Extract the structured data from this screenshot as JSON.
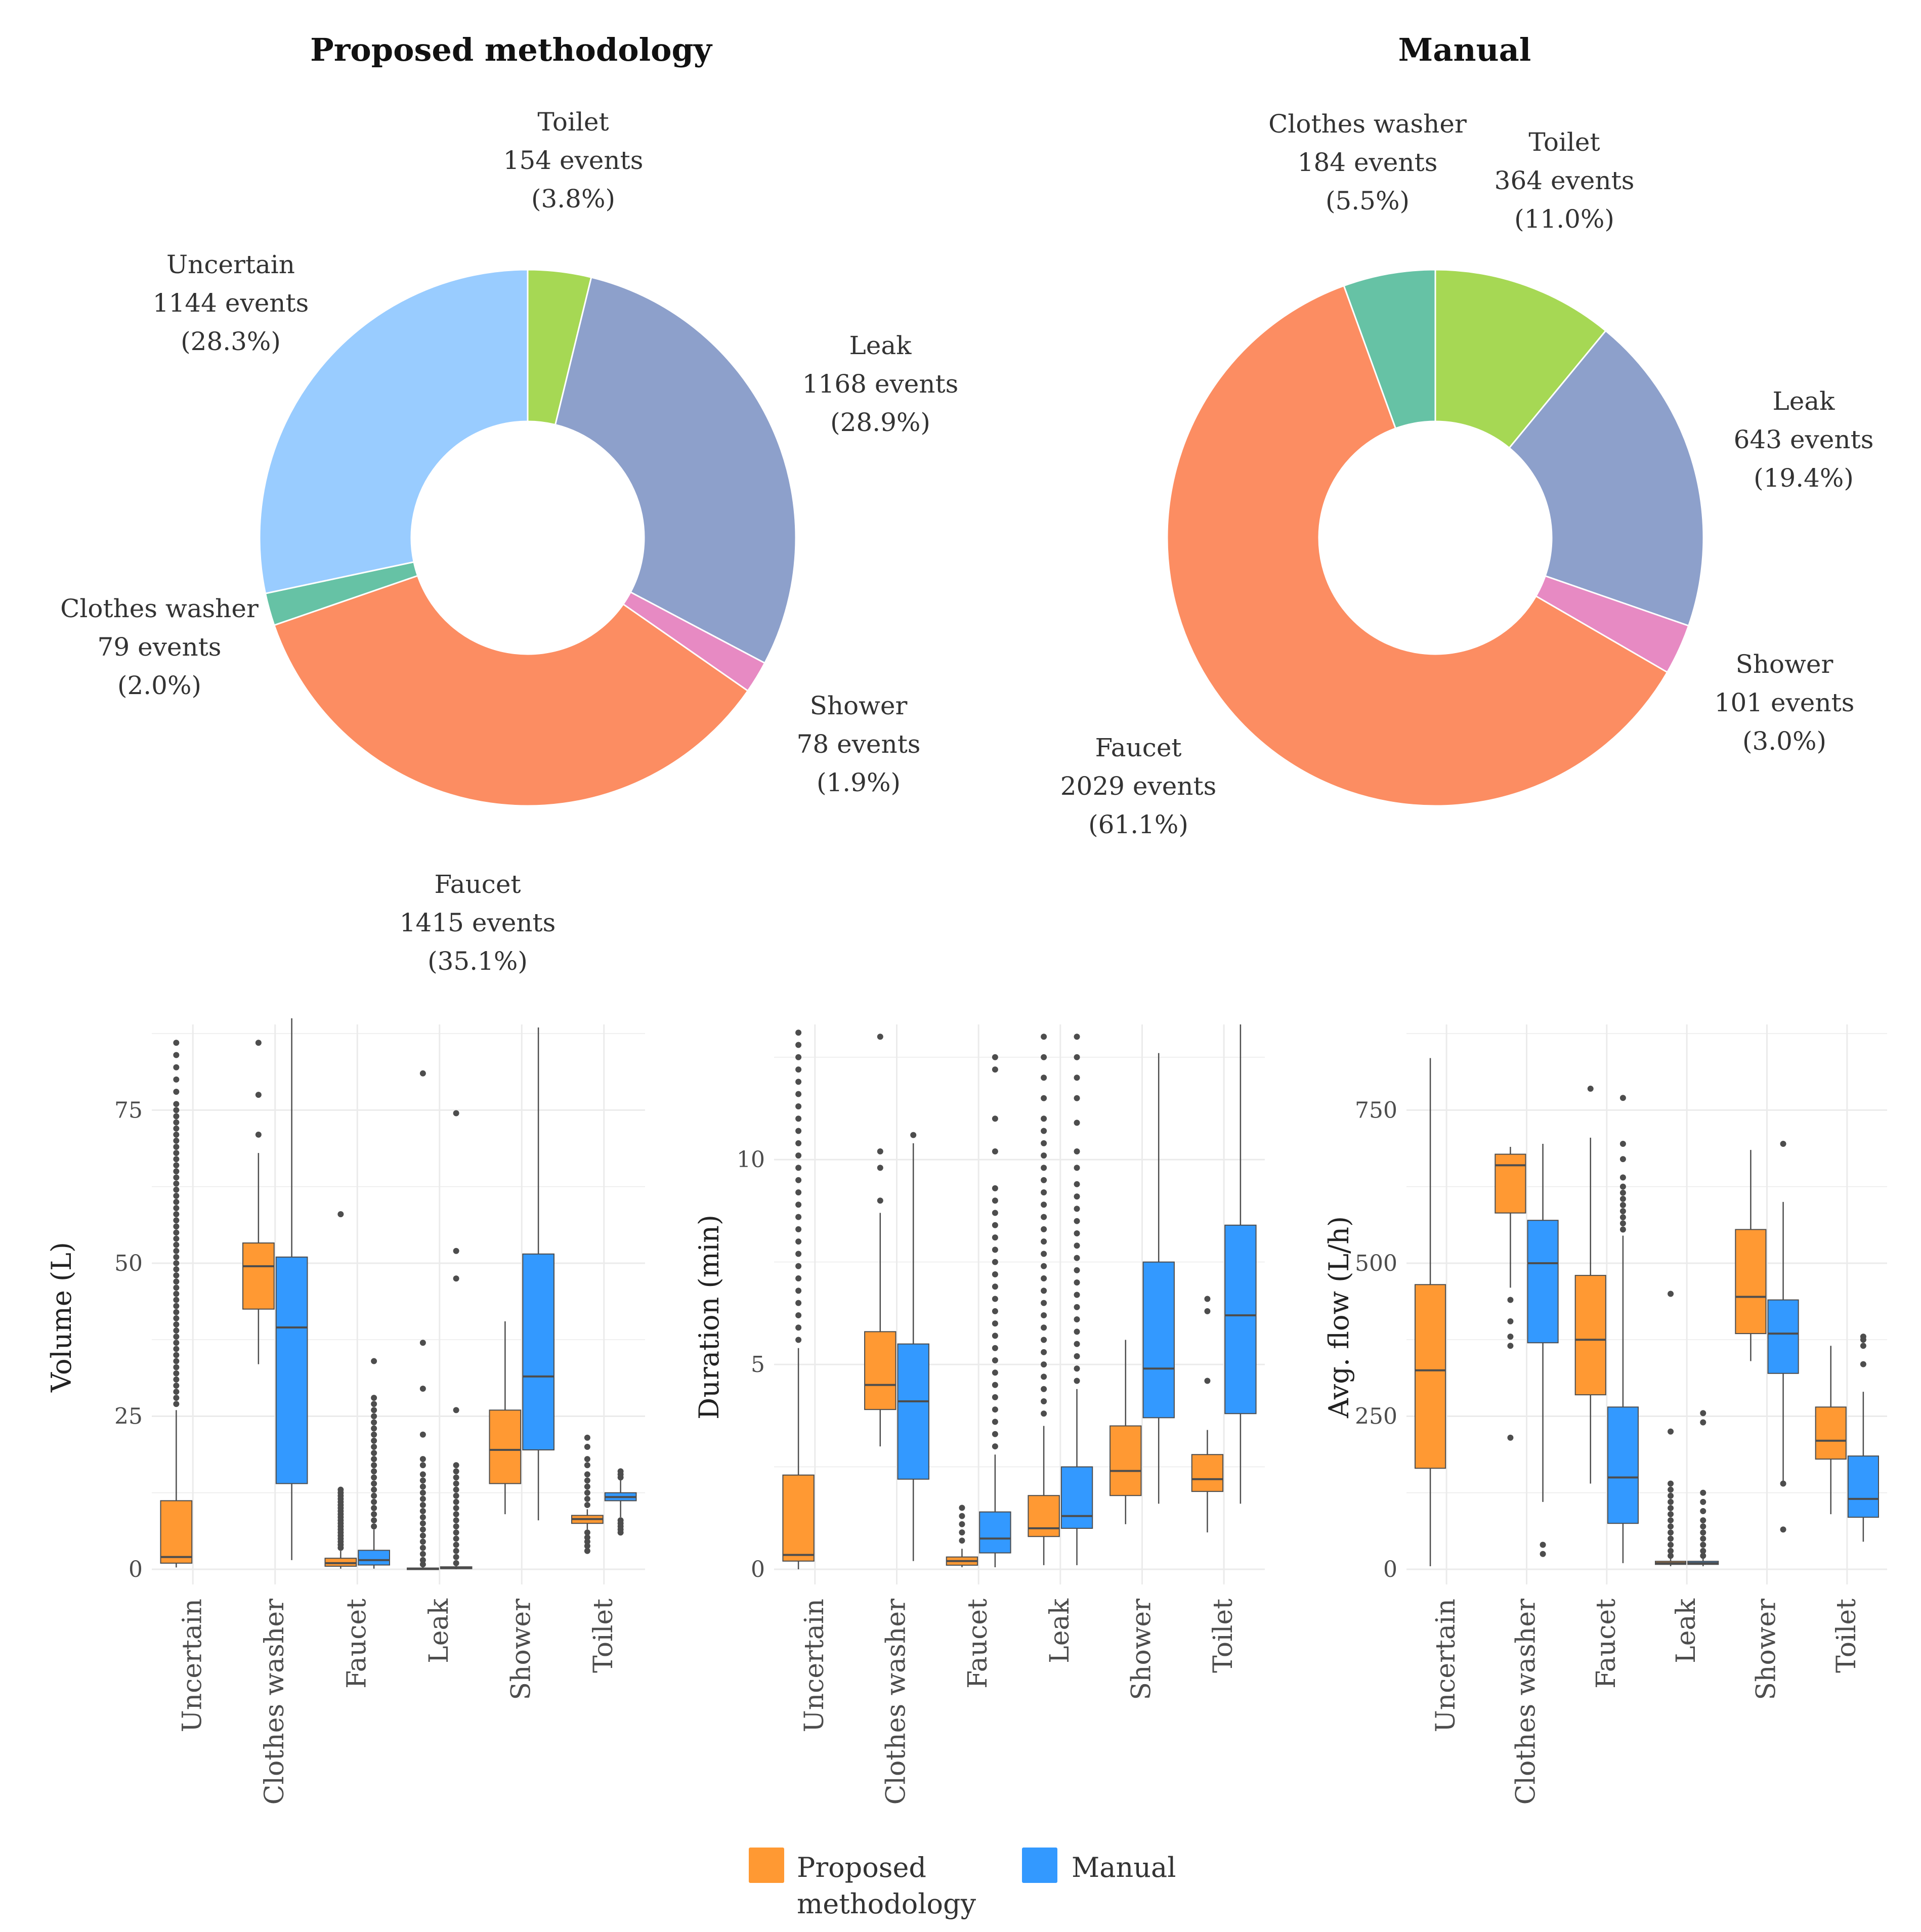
{
  "colors": {
    "Toilet": "#a6d854",
    "Leak": "#8da0cb",
    "Shower": "#e78ac3",
    "Faucet": "#fc8d62",
    "Clothes washer": "#66c2a5",
    "Uncertain": "#99ccff",
    "proposed": "#ff9933",
    "manual": "#3399ff",
    "grid": "#ebebeb",
    "whisker": "#4d4d4d"
  },
  "legend": {
    "proposed_line1": "Proposed",
    "proposed_line2": "methodology",
    "manual": "Manual"
  },
  "chart_data": [
    {
      "type": "pie",
      "title": "Proposed methodology",
      "donut": true,
      "slices": [
        {
          "label": "Toilet",
          "events": "154 events",
          "pct": "(3.8%)",
          "value": 154
        },
        {
          "label": "Leak",
          "events": "1168 events",
          "pct": "(28.9%)",
          "value": 1168
        },
        {
          "label": "Shower",
          "events": "78 events",
          "pct": "(1.9%)",
          "value": 78
        },
        {
          "label": "Faucet",
          "events": "1415 events",
          "pct": "(35.1%)",
          "value": 1415
        },
        {
          "label": "Clothes washer",
          "events": "79 events",
          "pct": "(2.0%)",
          "value": 79
        },
        {
          "label": "Uncertain",
          "events": "1144 events",
          "pct": "(28.3%)",
          "value": 1144
        }
      ]
    },
    {
      "type": "pie",
      "title": "Manual",
      "donut": true,
      "slices": [
        {
          "label": "Toilet",
          "events": "364 events",
          "pct": "(11.0%)",
          "value": 364
        },
        {
          "label": "Leak",
          "events": "643 events",
          "pct": "(19.4%)",
          "value": 643
        },
        {
          "label": "Shower",
          "events": "101 events",
          "pct": "(3.0%)",
          "value": 101
        },
        {
          "label": "Faucet",
          "events": "2029 events",
          "pct": "(61.1%)",
          "value": 2029
        },
        {
          "label": "Clothes washer",
          "events": "184 events",
          "pct": "(5.5%)",
          "value": 184
        }
      ]
    },
    {
      "type": "box",
      "ylabel": "Volume (L)",
      "ylim": [
        0,
        89
      ],
      "yticks": [
        0,
        25,
        50,
        75
      ],
      "categories": [
        "Uncertain",
        "Clothes washer",
        "Faucet",
        "Leak",
        "Shower",
        "Toilet"
      ],
      "series": [
        {
          "name": "Proposed methodology",
          "boxes": [
            {
              "cat": "Uncertain",
              "wlo": 0.3,
              "q1": 1.0,
              "med": 2.0,
              "q3": 11.2,
              "whi": 26.0,
              "outliers": [
                27,
                28,
                29,
                30,
                31,
                32,
                33,
                34,
                35,
                36,
                37,
                38,
                39,
                40,
                41,
                42,
                43,
                44,
                45,
                46,
                47,
                48,
                49,
                50,
                51,
                52,
                53,
                54,
                55,
                56,
                57,
                58,
                59,
                60,
                61,
                62,
                63,
                64,
                65,
                66,
                67,
                68,
                69,
                70,
                71,
                72,
                73,
                74,
                75,
                76,
                78,
                80,
                82,
                84,
                86
              ]
            },
            {
              "cat": "Clothes washer",
              "wlo": 33.5,
              "q1": 42.5,
              "med": 49.5,
              "q3": 53.3,
              "whi": 68.0,
              "outliers": [
                71,
                77.5,
                86
              ]
            },
            {
              "cat": "Faucet",
              "wlo": 0.1,
              "q1": 0.5,
              "med": 1.0,
              "q3": 1.8,
              "whi": 3.0,
              "outliers": [
                3.5,
                4,
                4.5,
                5,
                5.5,
                6,
                6.5,
                7,
                7.5,
                8,
                8.5,
                9,
                9.5,
                10,
                10.5,
                11,
                11.5,
                12,
                12.5,
                13,
                58
              ]
            },
            {
              "cat": "Leak",
              "wlo": 0.0,
              "q1": 0.05,
              "med": 0.1,
              "q3": 0.2,
              "whi": 0.4,
              "outliers": [
                0.8,
                1.5,
                2.5,
                3.5,
                4.5,
                5.5,
                6.5,
                7.5,
                8.5,
                9.5,
                10.5,
                11.5,
                12.5,
                13.5,
                14.5,
                15.5,
                17,
                18,
                22,
                29.5,
                37,
                81
              ]
            },
            {
              "cat": "Shower",
              "wlo": 9.0,
              "q1": 14.0,
              "med": 19.5,
              "q3": 26.0,
              "whi": 40.5,
              "outliers": []
            },
            {
              "cat": "Toilet",
              "wlo": 6.5,
              "q1": 7.5,
              "med": 8.2,
              "q3": 8.8,
              "whi": 9.8,
              "outliers": [
                3,
                3.8,
                4.5,
                5.2,
                6,
                10.5,
                11.5,
                12.5,
                13.5,
                14.5,
                15.5,
                17,
                18,
                20,
                21.5
              ]
            }
          ]
        },
        {
          "name": "Manual",
          "boxes": [
            {
              "cat": "Uncertain",
              "none": true
            },
            {
              "cat": "Clothes washer",
              "wlo": 1.5,
              "q1": 14.0,
              "med": 39.5,
              "q3": 51.0,
              "whi": 90.0,
              "outliers": []
            },
            {
              "cat": "Faucet",
              "wlo": 0.1,
              "q1": 0.7,
              "med": 1.5,
              "q3": 3.1,
              "whi": 6.5,
              "outliers": [
                7,
                8,
                9,
                10,
                11,
                12,
                13,
                14,
                15,
                16,
                17,
                18,
                19,
                20,
                21,
                22,
                23,
                24,
                25,
                26,
                27,
                28,
                34
              ]
            },
            {
              "cat": "Leak",
              "wlo": 0.0,
              "q1": 0.1,
              "med": 0.2,
              "q3": 0.4,
              "whi": 0.8,
              "outliers": [
                1,
                2,
                3,
                4,
                5,
                6,
                7,
                8,
                9,
                10,
                11,
                12,
                13,
                14,
                15,
                16,
                17,
                26,
                47.5,
                52,
                74.5
              ]
            },
            {
              "cat": "Shower",
              "wlo": 8.0,
              "q1": 19.5,
              "med": 31.5,
              "q3": 51.5,
              "whi": 88.5,
              "outliers": []
            },
            {
              "cat": "Toilet",
              "wlo": 8.5,
              "q1": 11.2,
              "med": 11.8,
              "q3": 12.5,
              "whi": 14.5,
              "outliers": [
                6,
                6.5,
                7,
                7.5,
                8,
                15,
                15.5,
                16
              ]
            }
          ]
        }
      ]
    },
    {
      "type": "box",
      "ylabel": "Duration (min)",
      "ylim": [
        0,
        13.3
      ],
      "yticks": [
        0,
        5,
        10
      ],
      "categories": [
        "Uncertain",
        "Clothes washer",
        "Faucet",
        "Leak",
        "Shower",
        "Toilet"
      ],
      "series": [
        {
          "name": "Proposed methodology",
          "boxes": [
            {
              "cat": "Uncertain",
              "wlo": 0.0,
              "q1": 0.2,
              "med": 0.35,
              "q3": 2.3,
              "whi": 5.4,
              "outliers": [
                5.6,
                5.9,
                6.2,
                6.5,
                6.8,
                7.1,
                7.4,
                7.7,
                8.0,
                8.3,
                8.6,
                8.9,
                9.2,
                9.5,
                9.8,
                10.1,
                10.4,
                10.7,
                11.0,
                11.3,
                11.6,
                11.9,
                12.2,
                12.5,
                12.8,
                13.1
              ]
            },
            {
              "cat": "Clothes washer",
              "wlo": 3.0,
              "q1": 3.9,
              "med": 4.5,
              "q3": 5.8,
              "whi": 8.7,
              "outliers": [
                9.0,
                9.8,
                10.2,
                13.0
              ]
            },
            {
              "cat": "Faucet",
              "wlo": 0.05,
              "q1": 0.1,
              "med": 0.2,
              "q3": 0.3,
              "whi": 0.5,
              "outliers": [
                0.7,
                0.9,
                1.1,
                1.3,
                1.5
              ]
            },
            {
              "cat": "Leak",
              "wlo": 0.1,
              "q1": 0.8,
              "med": 1.0,
              "q3": 1.8,
              "whi": 3.5,
              "outliers": [
                3.8,
                4.1,
                4.4,
                4.7,
                5.0,
                5.3,
                5.6,
                5.9,
                6.2,
                6.5,
                6.8,
                7.1,
                7.4,
                7.7,
                8.0,
                8.3,
                8.6,
                8.9,
                9.2,
                9.5,
                9.8,
                10.1,
                10.4,
                10.7,
                11.0,
                11.5,
                12.0,
                12.5,
                13.0
              ]
            },
            {
              "cat": "Shower",
              "wlo": 1.1,
              "q1": 1.8,
              "med": 2.4,
              "q3": 3.5,
              "whi": 5.6,
              "outliers": []
            },
            {
              "cat": "Toilet",
              "wlo": 0.9,
              "q1": 1.9,
              "med": 2.2,
              "q3": 2.8,
              "whi": 3.4,
              "outliers": [
                4.6,
                6.3,
                6.6
              ]
            }
          ]
        },
        {
          "name": "Manual",
          "boxes": [
            {
              "cat": "Uncertain",
              "none": true
            },
            {
              "cat": "Clothes washer",
              "wlo": 0.2,
              "q1": 2.2,
              "med": 4.1,
              "q3": 5.5,
              "whi": 10.4,
              "outliers": [
                10.6
              ]
            },
            {
              "cat": "Faucet",
              "wlo": 0.05,
              "q1": 0.4,
              "med": 0.75,
              "q3": 1.4,
              "whi": 2.8,
              "outliers": [
                3.0,
                3.3,
                3.6,
                3.9,
                4.2,
                4.5,
                4.8,
                5.1,
                5.4,
                5.7,
                6.0,
                6.3,
                6.6,
                6.9,
                7.2,
                7.5,
                7.8,
                8.1,
                8.4,
                8.7,
                9.0,
                9.3,
                10.2,
                11.0,
                12.2,
                12.5
              ]
            },
            {
              "cat": "Leak",
              "wlo": 0.1,
              "q1": 1.0,
              "med": 1.3,
              "q3": 2.5,
              "whi": 4.4,
              "outliers": [
                4.6,
                4.9,
                5.2,
                5.5,
                5.8,
                6.1,
                6.4,
                6.7,
                7.0,
                7.3,
                7.6,
                7.9,
                8.2,
                8.5,
                8.8,
                9.1,
                9.4,
                9.8,
                10.2,
                10.9,
                11.5,
                12.0,
                12.5,
                13.0
              ]
            },
            {
              "cat": "Shower",
              "wlo": 1.6,
              "q1": 3.7,
              "med": 4.9,
              "q3": 7.5,
              "whi": 12.6,
              "outliers": []
            },
            {
              "cat": "Toilet",
              "wlo": 1.6,
              "q1": 3.8,
              "med": 6.2,
              "q3": 8.4,
              "whi": 13.3,
              "outliers": []
            }
          ]
        }
      ]
    },
    {
      "type": "box",
      "ylabel": "Avg. flow (L/h)",
      "ylim": [
        0,
        890
      ],
      "yticks": [
        0,
        250,
        500,
        750
      ],
      "categories": [
        "Uncertain",
        "Clothes washer",
        "Faucet",
        "Leak",
        "Shower",
        "Toilet"
      ],
      "series": [
        {
          "name": "Proposed methodology",
          "boxes": [
            {
              "cat": "Uncertain",
              "wlo": 5,
              "q1": 165,
              "med": 325,
              "q3": 465,
              "whi": 835,
              "outliers": []
            },
            {
              "cat": "Clothes washer",
              "wlo": 460,
              "q1": 582,
              "med": 660,
              "q3": 678,
              "whi": 690,
              "outliers": [
                215,
                365,
                380,
                405,
                440
              ]
            },
            {
              "cat": "Faucet",
              "wlo": 140,
              "q1": 285,
              "med": 375,
              "q3": 480,
              "whi": 705,
              "outliers": [
                785
              ]
            },
            {
              "cat": "Leak",
              "wlo": 5,
              "q1": 8,
              "med": 10,
              "q3": 13,
              "whi": 18,
              "outliers": [
                22,
                30,
                40,
                50,
                60,
                70,
                80,
                90,
                100,
                110,
                120,
                130,
                140,
                225,
                450
              ]
            },
            {
              "cat": "Shower",
              "wlo": 340,
              "q1": 385,
              "med": 445,
              "q3": 555,
              "whi": 685,
              "outliers": []
            },
            {
              "cat": "Toilet",
              "wlo": 90,
              "q1": 180,
              "med": 210,
              "q3": 265,
              "whi": 365,
              "outliers": []
            }
          ]
        },
        {
          "name": "Manual",
          "boxes": [
            {
              "cat": "Uncertain",
              "none": true
            },
            {
              "cat": "Clothes washer",
              "wlo": 110,
              "q1": 370,
              "med": 500,
              "q3": 570,
              "whi": 695,
              "outliers": [
                25,
                40
              ]
            },
            {
              "cat": "Faucet",
              "wlo": 10,
              "q1": 75,
              "med": 150,
              "q3": 265,
              "whi": 545,
              "outliers": [
                555,
                565,
                575,
                585,
                595,
                605,
                615,
                625,
                640,
                670,
                695,
                770
              ]
            },
            {
              "cat": "Leak",
              "wlo": 5,
              "q1": 8,
              "med": 10,
              "q3": 13,
              "whi": 18,
              "outliers": [
                22,
                30,
                40,
                50,
                60,
                70,
                80,
                95,
                110,
                125,
                240,
                255
              ]
            },
            {
              "cat": "Shower",
              "wlo": 140,
              "q1": 320,
              "med": 385,
              "q3": 440,
              "whi": 600,
              "outliers": [
                65,
                140,
                695
              ]
            },
            {
              "cat": "Toilet",
              "wlo": 45,
              "q1": 85,
              "med": 115,
              "q3": 185,
              "whi": 290,
              "outliers": [
                335,
                365,
                375,
                380
              ]
            }
          ]
        }
      ]
    }
  ]
}
